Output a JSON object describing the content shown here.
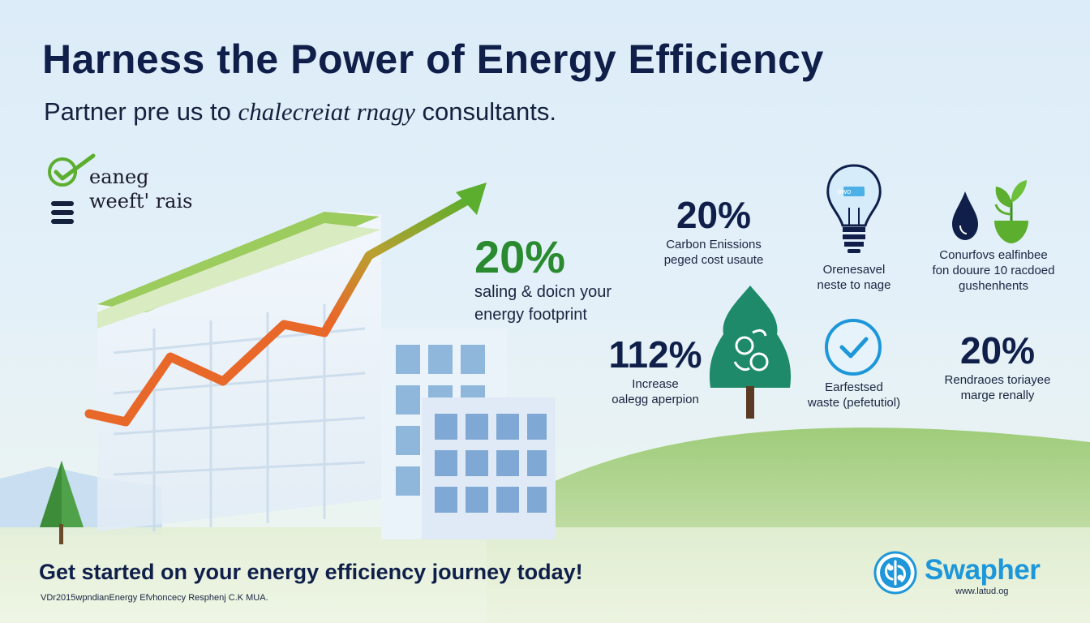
{
  "header": {
    "title": "Harness the Power of Energy Efficiency",
    "subtitle_pre": "Partner pre us to",
    "subtitle_italic": "chalecreiɑt rnagy",
    "subtitle_post": "consultants."
  },
  "badge": {
    "line1": "eaneg",
    "line2": "weeft' rais",
    "icon": "checkmark-circle-icon"
  },
  "main_stat": {
    "value": "20%",
    "line1": "saling & doicn your",
    "line2": "energy footprint"
  },
  "stats": [
    {
      "value": "20%",
      "line1": "Carbon Enissions",
      "line2": "peged cost usaute"
    },
    {
      "icon": "lightbulb-icon",
      "icon_text": "owo",
      "line1": "Orenesavel",
      "line2": "neste to nage"
    },
    {
      "icon": "water-drop-plant-icon",
      "line1": "Conurfovs ealfinbee",
      "line2": "fon douure 10 racdoed",
      "line3": "gushenhents"
    },
    {
      "value": "112%",
      "line1": "Increase",
      "line2": "oalegg aperpion"
    },
    {
      "icon": "check-circle-icon",
      "line1": "Earfestsed",
      "line2": "waste (pefetutiol)"
    },
    {
      "value": "20%",
      "line1": "Rendraoes toriayee",
      "line2": "marge renally"
    }
  ],
  "cta": "Get started on your energy efficiency journey today!",
  "footnote": "VDr2015wpndianEnergy Efvhoncecy Resphenj C.K MUA.",
  "brand": {
    "name": "Swapher",
    "url": "www.latud.og",
    "logo_icon": "swapher-logo-icon"
  },
  "colors": {
    "title": "#0f1f4a",
    "accent_green": "#5cae2e",
    "trend_orange": "#e8682a",
    "tree_green": "#1e8a6a",
    "brand_blue": "#1d97d9"
  }
}
